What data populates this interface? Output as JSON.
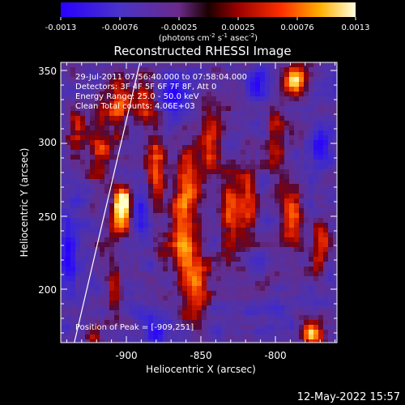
{
  "chart_data": {
    "type": "heatmap",
    "title": "Reconstructed RHESSI Image",
    "xlabel": "Heliocentric X (arcsec)",
    "ylabel": "Heliocentric Y (arcsec)",
    "xlim": [
      -945,
      -840
    ],
    "ylim": [
      163,
      355
    ],
    "x_ticks": [
      -900,
      -850,
      -800
    ],
    "y_ticks": [
      200,
      250,
      300,
      350
    ],
    "colorbar": {
      "min": -0.0013,
      "max": 0.0013,
      "ticks": [
        "-0.0013",
        "-0.00076",
        "-0.00025",
        "0.00025",
        "0.00076",
        "0.0013"
      ],
      "label_main": "(photons cm",
      "label_exp1": "-2",
      "label_mid": " s",
      "label_exp2": "-1",
      "label_end": " asec",
      "label_exp3": "-2",
      "label_close": ")"
    },
    "annotations": [
      "29-Jul-2011 07:56:40.000 to 07:58:04.000",
      "Detectors: 3F 4F 5F 6F 7F 8F, Att 0",
      "Energy Range: 25.0 - 50.0 keV",
      "Clean    Total counts: 4.06E+03"
    ],
    "peak_label": "Position of Peak = [-909,251]",
    "peak": [
      -909,
      251
    ],
    "limb_line": [
      [
        -935,
        163
      ],
      [
        -891,
        355
      ]
    ],
    "colormap": "hot-blue (RHESSI)",
    "bright_regions": [
      {
        "x": -903,
        "y": 251,
        "intensity": 1.0,
        "sx": 5,
        "sy": 9
      },
      {
        "x": -902,
        "y": 262,
        "intensity": 0.8,
        "sx": 4,
        "sy": 6
      },
      {
        "x": -918,
        "y": 300,
        "intensity": 0.55,
        "sx": 5,
        "sy": 18
      },
      {
        "x": -905,
        "y": 325,
        "intensity": 0.55,
        "sx": 5,
        "sy": 14
      },
      {
        "x": -888,
        "y": 330,
        "intensity": 0.55,
        "sx": 5,
        "sy": 12
      },
      {
        "x": -880,
        "y": 280,
        "intensity": 0.55,
        "sx": 4,
        "sy": 25
      },
      {
        "x": -862,
        "y": 240,
        "intensity": 0.7,
        "sx": 6,
        "sy": 26
      },
      {
        "x": -852,
        "y": 200,
        "intensity": 0.65,
        "sx": 6,
        "sy": 18
      },
      {
        "x": -858,
        "y": 280,
        "intensity": 0.55,
        "sx": 5,
        "sy": 14
      },
      {
        "x": -843,
        "y": 300,
        "intensity": 0.6,
        "sx": 5,
        "sy": 16
      },
      {
        "x": -830,
        "y": 250,
        "intensity": 0.55,
        "sx": 5,
        "sy": 22
      },
      {
        "x": -818,
        "y": 260,
        "intensity": 0.55,
        "sx": 5,
        "sy": 20
      },
      {
        "x": -800,
        "y": 300,
        "intensity": 0.5,
        "sx": 5,
        "sy": 15
      },
      {
        "x": -786,
        "y": 343,
        "intensity": 0.95,
        "sx": 6,
        "sy": 8
      },
      {
        "x": -789,
        "y": 245,
        "intensity": 0.55,
        "sx": 6,
        "sy": 18
      },
      {
        "x": -775,
        "y": 170,
        "intensity": 0.9,
        "sx": 5,
        "sy": 8
      },
      {
        "x": -770,
        "y": 230,
        "intensity": 0.5,
        "sx": 4,
        "sy": 16
      },
      {
        "x": -933,
        "y": 310,
        "intensity": 0.45,
        "sx": 4,
        "sy": 12
      },
      {
        "x": -908,
        "y": 205,
        "intensity": 0.45,
        "sx": 4,
        "sy": 14
      },
      {
        "x": -920,
        "y": 170,
        "intensity": 0.4,
        "sx": 5,
        "sy": 8
      }
    ],
    "dark_regions": [
      {
        "x": -868,
        "y": 330,
        "intensity": 0.8,
        "sx": 6,
        "sy": 10
      },
      {
        "x": -890,
        "y": 250,
        "intensity": 0.6,
        "sx": 5,
        "sy": 10
      },
      {
        "x": -812,
        "y": 340,
        "intensity": 0.5,
        "sx": 6,
        "sy": 8
      },
      {
        "x": -770,
        "y": 300,
        "intensity": 0.7,
        "sx": 4,
        "sy": 10
      },
      {
        "x": -880,
        "y": 170,
        "intensity": 0.5,
        "sx": 6,
        "sy": 8
      },
      {
        "x": -938,
        "y": 225,
        "intensity": 0.6,
        "sx": 4,
        "sy": 20
      }
    ]
  },
  "footer": {
    "timestamp": "12-May-2022 15:57"
  }
}
